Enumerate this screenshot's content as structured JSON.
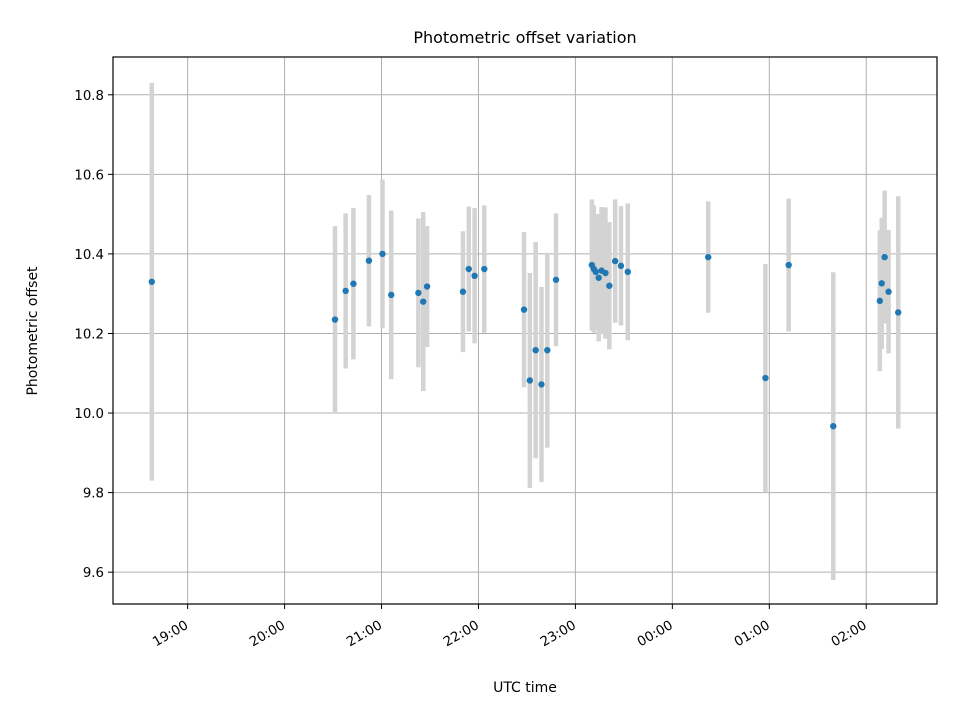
{
  "chart_data": {
    "type": "scatter",
    "title": "Photometric offset variation",
    "xlabel": "UTC time",
    "ylabel": "Photometric offset",
    "xlim_hours": [
      18.23,
      26.73
    ],
    "ylim": [
      9.52,
      10.895
    ],
    "grid": true,
    "x_tick_hours": [
      19,
      20,
      21,
      22,
      23,
      24,
      25,
      26
    ],
    "x_tick_labels": [
      "19:00",
      "20:00",
      "21:00",
      "22:00",
      "23:00",
      "00:00",
      "01:00",
      "02:00"
    ],
    "y_ticks": [
      9.6,
      9.8,
      10.0,
      10.2,
      10.4,
      10.6,
      10.8
    ],
    "y_tick_labels": [
      "9.6",
      "9.8",
      "10.0",
      "10.2",
      "10.4",
      "10.6",
      "10.8"
    ],
    "colors": {
      "marker": "#1f77b4",
      "errorbar": "#d3d3d3",
      "grid": "#b0b0b0",
      "axes": "#000000"
    },
    "points": [
      {
        "t": 18.63,
        "y": 10.33,
        "err": 0.5
      },
      {
        "t": 20.52,
        "y": 10.235,
        "err": 0.235
      },
      {
        "t": 20.63,
        "y": 10.307,
        "err": 0.195
      },
      {
        "t": 20.71,
        "y": 10.325,
        "err": 0.19
      },
      {
        "t": 20.87,
        "y": 10.383,
        "err": 0.165
      },
      {
        "t": 21.01,
        "y": 10.4,
        "err": 0.187
      },
      {
        "t": 21.1,
        "y": 10.297,
        "err": 0.212
      },
      {
        "t": 21.38,
        "y": 10.302,
        "err": 0.187
      },
      {
        "t": 21.43,
        "y": 10.28,
        "err": 0.225
      },
      {
        "t": 21.47,
        "y": 10.318,
        "err": 0.152
      },
      {
        "t": 21.84,
        "y": 10.305,
        "err": 0.152
      },
      {
        "t": 21.9,
        "y": 10.362,
        "err": 0.157
      },
      {
        "t": 21.96,
        "y": 10.345,
        "err": 0.17
      },
      {
        "t": 22.06,
        "y": 10.362,
        "err": 0.16
      },
      {
        "t": 22.47,
        "y": 10.26,
        "err": 0.195
      },
      {
        "t": 22.53,
        "y": 10.082,
        "err": 0.27
      },
      {
        "t": 22.59,
        "y": 10.158,
        "err": 0.272
      },
      {
        "t": 22.65,
        "y": 10.072,
        "err": 0.245
      },
      {
        "t": 22.71,
        "y": 10.158,
        "err": 0.245
      },
      {
        "t": 22.8,
        "y": 10.335,
        "err": 0.167
      },
      {
        "t": 23.17,
        "y": 10.372,
        "err": 0.165
      },
      {
        "t": 23.19,
        "y": 10.362,
        "err": 0.16
      },
      {
        "t": 23.21,
        "y": 10.355,
        "err": 0.145
      },
      {
        "t": 23.24,
        "y": 10.34,
        "err": 0.16
      },
      {
        "t": 23.27,
        "y": 10.358,
        "err": 0.16
      },
      {
        "t": 23.31,
        "y": 10.352,
        "err": 0.165
      },
      {
        "t": 23.35,
        "y": 10.32,
        "err": 0.16
      },
      {
        "t": 23.41,
        "y": 10.382,
        "err": 0.155
      },
      {
        "t": 23.47,
        "y": 10.37,
        "err": 0.15
      },
      {
        "t": 23.54,
        "y": 10.355,
        "err": 0.172
      },
      {
        "t": 24.37,
        "y": 10.392,
        "err": 0.14
      },
      {
        "t": 24.96,
        "y": 10.088,
        "err": 0.287
      },
      {
        "t": 25.2,
        "y": 10.372,
        "err": 0.167
      },
      {
        "t": 25.66,
        "y": 9.967,
        "err": 0.387
      },
      {
        "t": 26.14,
        "y": 10.282,
        "err": 0.177
      },
      {
        "t": 26.16,
        "y": 10.326,
        "err": 0.165
      },
      {
        "t": 26.19,
        "y": 10.392,
        "err": 0.167
      },
      {
        "t": 26.23,
        "y": 10.305,
        "err": 0.155
      },
      {
        "t": 26.33,
        "y": 10.253,
        "err": 0.292
      }
    ]
  }
}
